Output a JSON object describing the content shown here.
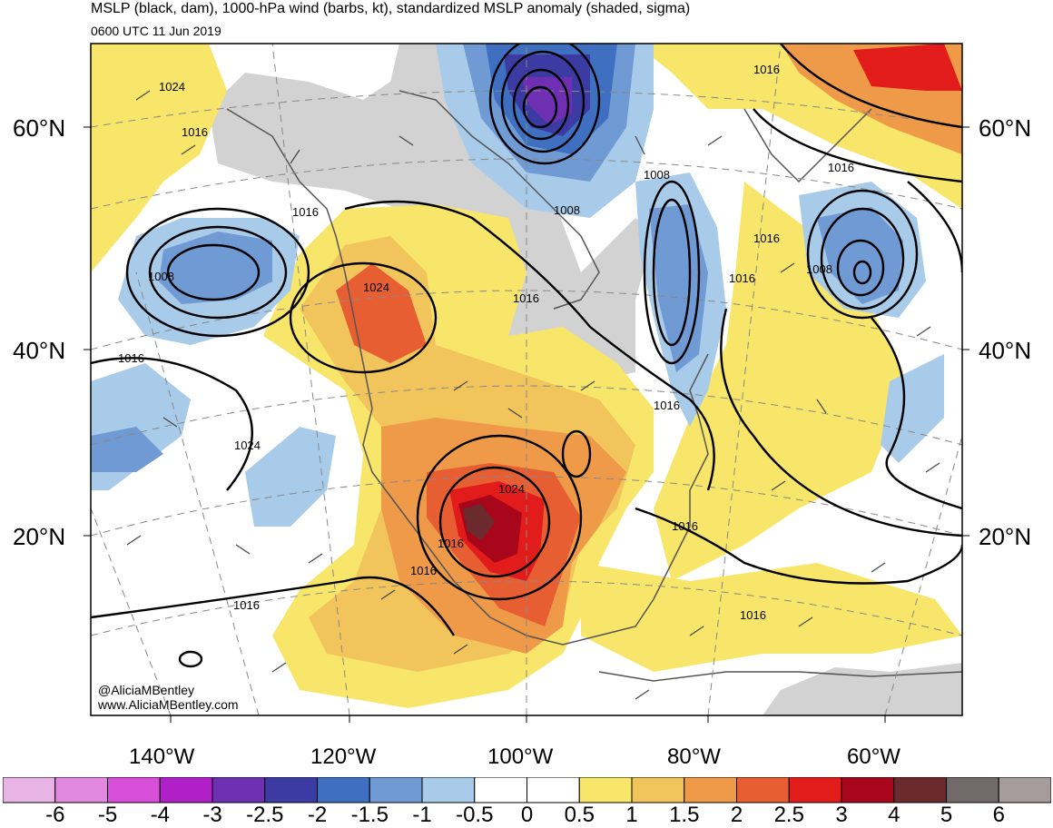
{
  "title": "MSLP (black, dam), 1000-hPa wind (barbs, kt), standardized MSLP anomaly (shaded, sigma)",
  "subtitle": "0600 UTC 11 Jun 2019",
  "latitude_labels": [
    "60°N",
    "40°N",
    "20°N"
  ],
  "longitude_labels": [
    "140°W",
    "120°W",
    "100°W",
    "80°W",
    "60°W"
  ],
  "isobar_labels": [
    "1016",
    "1016",
    "1008",
    "1016",
    "1024",
    "1016",
    "1024",
    "1016",
    "1008",
    "1016",
    "1008",
    "1016",
    "1016",
    "1016",
    "1024",
    "1016",
    "1016",
    "1016",
    "1016",
    "1024",
    "1008",
    "1016"
  ],
  "credit": {
    "handle": "@AliciaMBentley",
    "website": "www.AliciaMBentley.com"
  },
  "colorbar": {
    "labels": [
      "-6",
      "-5",
      "-4",
      "-3",
      "-2.5",
      "-2",
      "-1.5",
      "-1",
      "-0.5",
      "0",
      "0.5",
      "1",
      "1.5",
      "2",
      "2.5",
      "3",
      "4",
      "5",
      "6"
    ],
    "colors": [
      "#e8b4e6",
      "#e388e0",
      "#d84fd9",
      "#b11fc9",
      "#6f2fb2",
      "#3c3aa3",
      "#3e6fc0",
      "#6f9ad4",
      "#a9cbea",
      "#ffffff",
      "#ffffff",
      "#f8e66a",
      "#f2c45c",
      "#ef9a48",
      "#e85e33",
      "#e21b1b",
      "#a8061a",
      "#6b2a2d",
      "#726a6a",
      "#a79c9c"
    ]
  },
  "colors": {
    "land": "#d2d2d2",
    "ocean": "#ffffff",
    "isobar": "#000000",
    "coast": "#555555"
  }
}
